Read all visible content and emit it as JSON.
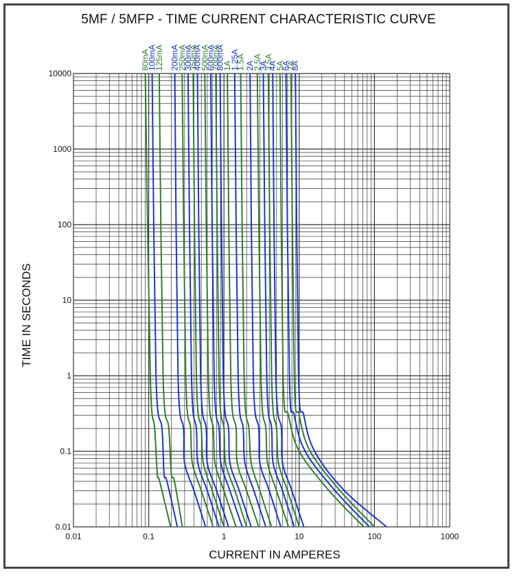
{
  "chart_data": {
    "type": "line",
    "title": "5MF / 5MFP - TIME CURRENT CHARACTERISTIC CURVE",
    "xlabel": "CURRENT IN AMPERES",
    "ylabel": "TIME IN SECONDS",
    "xscale": "log",
    "yscale": "log",
    "xlim": [
      0.01,
      1000
    ],
    "ylim": [
      0.01,
      10000
    ],
    "grid": true,
    "x_ticks": [
      "0.01",
      "0.1",
      "1",
      "10",
      "100",
      "1000"
    ],
    "y_ticks": [
      "0.01",
      "0.1",
      "1",
      "10",
      "100",
      "1000",
      "10000"
    ],
    "colors": {
      "green": "#2e7d32",
      "blue": "#1a35cc",
      "grid": "#333333"
    },
    "series": [
      {
        "name": "80mA",
        "color": "green",
        "points": [
          [
            0.09,
            10000
          ],
          [
            0.105,
            1
          ],
          [
            0.12,
            0.2
          ],
          [
            0.13,
            0.05
          ],
          [
            0.14,
            0.04
          ],
          [
            0.195,
            0.01
          ]
        ]
      },
      {
        "name": "100mA",
        "color": "blue",
        "points": [
          [
            0.111,
            10000
          ],
          [
            0.125,
            1
          ],
          [
            0.15,
            0.2
          ],
          [
            0.16,
            0.05
          ],
          [
            0.175,
            0.04
          ],
          [
            0.24,
            0.01
          ]
        ]
      },
      {
        "name": "125mA",
        "color": "green",
        "points": [
          [
            0.138,
            10000
          ],
          [
            0.155,
            1
          ],
          [
            0.185,
            0.2
          ],
          [
            0.2,
            0.05
          ],
          [
            0.22,
            0.04
          ],
          [
            0.28,
            0.01
          ]
        ]
      },
      {
        "name": "200mA",
        "color": "blue",
        "points": [
          [
            0.222,
            10000
          ],
          [
            0.245,
            1
          ],
          [
            0.29,
            0.2
          ],
          [
            0.3,
            0.07
          ],
          [
            0.4,
            0.03
          ],
          [
            0.57,
            0.01
          ]
        ]
      },
      {
        "name": "250mA",
        "color": "green",
        "points": [
          [
            0.278,
            10000
          ],
          [
            0.31,
            1
          ],
          [
            0.36,
            0.2
          ],
          [
            0.38,
            0.07
          ],
          [
            0.5,
            0.03
          ],
          [
            0.72,
            0.01
          ]
        ]
      },
      {
        "name": "300mA",
        "color": "blue",
        "points": [
          [
            0.333,
            10000
          ],
          [
            0.37,
            1
          ],
          [
            0.43,
            0.2
          ],
          [
            0.45,
            0.07
          ],
          [
            0.6,
            0.03
          ],
          [
            0.86,
            0.01
          ]
        ]
      },
      {
        "name": "350mA",
        "color": "green",
        "points": [
          [
            0.389,
            10000
          ],
          [
            0.43,
            1
          ],
          [
            0.5,
            0.2
          ],
          [
            0.53,
            0.07
          ],
          [
            0.7,
            0.03
          ],
          [
            1.0,
            0.01
          ]
        ]
      },
      {
        "name": "400mA",
        "color": "blue",
        "points": [
          [
            0.444,
            10000
          ],
          [
            0.49,
            1
          ],
          [
            0.58,
            0.2
          ],
          [
            0.6,
            0.07
          ],
          [
            0.8,
            0.03
          ],
          [
            1.15,
            0.01
          ]
        ]
      },
      {
        "name": "500mA",
        "color": "green",
        "points": [
          [
            0.556,
            10000
          ],
          [
            0.62,
            1
          ],
          [
            0.72,
            0.2
          ],
          [
            0.76,
            0.07
          ],
          [
            1.0,
            0.03
          ],
          [
            1.45,
            0.01
          ]
        ]
      },
      {
        "name": "600mA",
        "color": "blue",
        "points": [
          [
            0.667,
            10000
          ],
          [
            0.74,
            1
          ],
          [
            0.86,
            0.2
          ],
          [
            0.91,
            0.07
          ],
          [
            1.2,
            0.03
          ],
          [
            1.75,
            0.01
          ]
        ]
      },
      {
        "name": "700mA",
        "color": "green",
        "points": [
          [
            0.778,
            10000
          ],
          [
            0.86,
            1
          ],
          [
            1.0,
            0.2
          ],
          [
            1.05,
            0.07
          ],
          [
            1.4,
            0.03
          ],
          [
            2.0,
            0.01
          ]
        ]
      },
      {
        "name": "800mA",
        "color": "blue",
        "points": [
          [
            0.889,
            10000
          ],
          [
            0.98,
            1
          ],
          [
            1.15,
            0.2
          ],
          [
            1.2,
            0.07
          ],
          [
            1.6,
            0.03
          ],
          [
            2.3,
            0.01
          ]
        ]
      },
      {
        "name": "1A",
        "color": "green",
        "points": [
          [
            1.111,
            10000
          ],
          [
            1.23,
            1
          ],
          [
            1.45,
            0.2
          ],
          [
            1.5,
            0.07
          ],
          [
            2.0,
            0.03
          ],
          [
            2.9,
            0.01
          ]
        ]
      },
      {
        "name": "1.25A",
        "color": "blue",
        "points": [
          [
            1.389,
            10000
          ],
          [
            1.54,
            1
          ],
          [
            1.8,
            0.2
          ],
          [
            1.9,
            0.07
          ],
          [
            2.5,
            0.03
          ],
          [
            3.6,
            0.01
          ]
        ]
      },
      {
        "name": "1.5A",
        "color": "green",
        "points": [
          [
            1.667,
            10000
          ],
          [
            1.85,
            1
          ],
          [
            2.15,
            0.2
          ],
          [
            2.3,
            0.07
          ],
          [
            3.0,
            0.03
          ],
          [
            4.3,
            0.01
          ]
        ]
      },
      {
        "name": "2A",
        "color": "blue",
        "points": [
          [
            2.222,
            10000
          ],
          [
            2.45,
            1
          ],
          [
            2.9,
            0.2
          ],
          [
            3.0,
            0.07
          ],
          [
            4.0,
            0.03
          ],
          [
            5.7,
            0.01
          ]
        ]
      },
      {
        "name": "2.5A",
        "color": "green",
        "points": [
          [
            2.778,
            10000
          ],
          [
            3.1,
            1
          ],
          [
            3.6,
            0.2
          ],
          [
            3.8,
            0.07
          ],
          [
            5.0,
            0.03
          ],
          [
            7.2,
            0.01
          ]
        ]
      },
      {
        "name": "3A",
        "color": "blue",
        "points": [
          [
            3.333,
            10000
          ],
          [
            3.7,
            1
          ],
          [
            4.3,
            0.2
          ],
          [
            4.5,
            0.07
          ],
          [
            6.0,
            0.03
          ],
          [
            8.6,
            0.01
          ]
        ]
      },
      {
        "name": "3.5A",
        "color": "green",
        "points": [
          [
            3.889,
            10000
          ],
          [
            4.3,
            1
          ],
          [
            5.0,
            0.2
          ],
          [
            5.3,
            0.07
          ],
          [
            7.0,
            0.03
          ],
          [
            10,
            0.01
          ]
        ]
      },
      {
        "name": "4A",
        "color": "blue",
        "points": [
          [
            4.444,
            10000
          ],
          [
            4.9,
            1
          ],
          [
            5.8,
            0.2
          ],
          [
            6.0,
            0.07
          ],
          [
            8.0,
            0.03
          ],
          [
            11.5,
            0.01
          ]
        ]
      },
      {
        "name": "5A",
        "color": "green",
        "points": [
          [
            5.556,
            10000
          ],
          [
            6.1,
            1
          ],
          [
            7.2,
            0.3
          ],
          [
            10,
            0.1
          ],
          [
            25,
            0.03
          ],
          [
            72,
            0.01
          ]
        ]
      },
      {
        "name": "6A",
        "color": "blue",
        "points": [
          [
            6.667,
            10000
          ],
          [
            7.4,
            1
          ],
          [
            8.6,
            0.3
          ],
          [
            12,
            0.1
          ],
          [
            30,
            0.03
          ],
          [
            86,
            0.01
          ]
        ]
      },
      {
        "name": "7A",
        "color": "green",
        "points": [
          [
            7.778,
            10000
          ],
          [
            8.6,
            1
          ],
          [
            10,
            0.3
          ],
          [
            14,
            0.1
          ],
          [
            35,
            0.03
          ],
          [
            100,
            0.01
          ]
        ]
      },
      {
        "name": "8A",
        "color": "blue",
        "points": [
          [
            8.889,
            10000
          ],
          [
            9.8,
            1
          ],
          [
            11.5,
            0.3
          ],
          [
            16,
            0.1
          ],
          [
            40,
            0.03
          ],
          [
            145,
            0.01
          ]
        ]
      }
    ]
  }
}
